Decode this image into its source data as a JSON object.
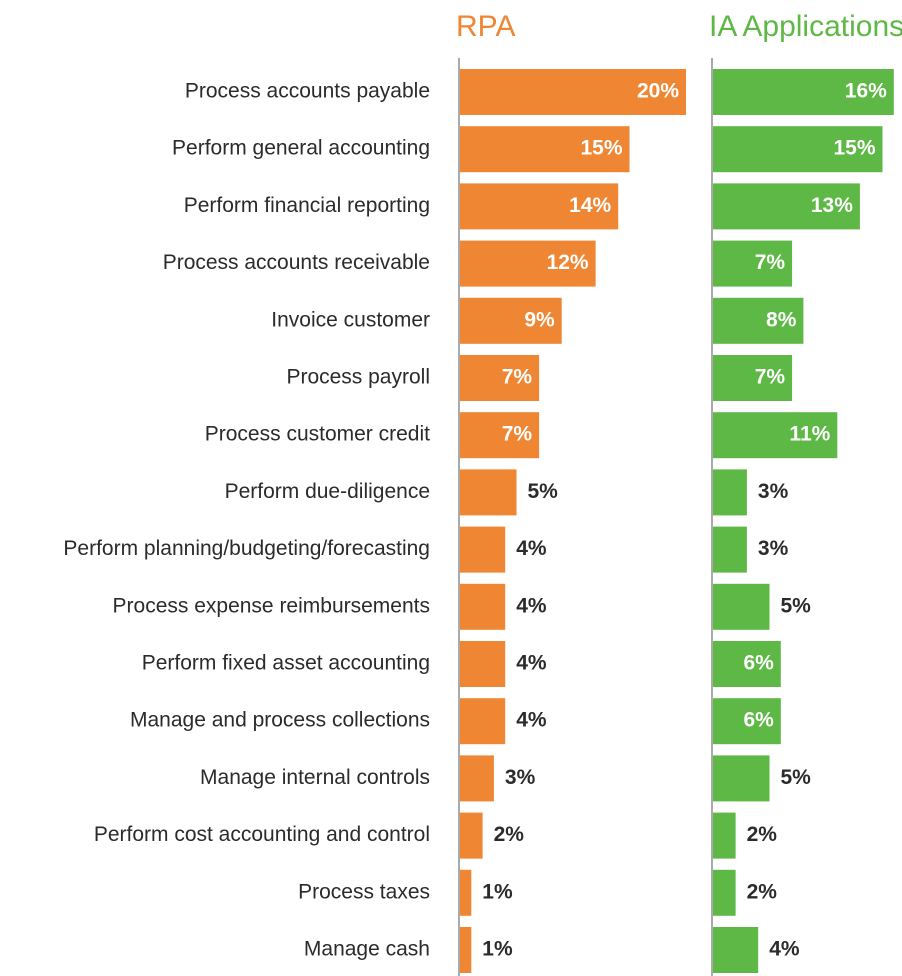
{
  "chart_data": {
    "type": "bar",
    "categories": [
      "Process accounts payable",
      "Perform general accounting",
      "Perform financial reporting",
      "Process accounts receivable",
      "Invoice customer",
      "Process payroll",
      "Process customer credit",
      "Perform due-diligence",
      "Perform planning/budgeting/forecasting",
      "Process expense reimbursements",
      "Perform fixed asset accounting",
      "Manage and process collections",
      "Manage internal controls",
      "Perform cost accounting and control",
      "Process taxes",
      "Manage cash"
    ],
    "series": [
      {
        "name": "RPA",
        "color": "#ef8633",
        "values": [
          20,
          15,
          14,
          12,
          9,
          7,
          7,
          5,
          4,
          4,
          4,
          4,
          3,
          2,
          1,
          1
        ],
        "value_labels": [
          "20%",
          "15%",
          "14%",
          "12%",
          "9%",
          "7%",
          "7%",
          "5%",
          "4%",
          "4%",
          "4%",
          "4%",
          "3%",
          "2%",
          "1%",
          "1%"
        ]
      },
      {
        "name": "IA Applications",
        "color": "#5db845",
        "values": [
          16,
          15,
          13,
          7,
          8,
          7,
          11,
          3,
          3,
          5,
          6,
          6,
          5,
          2,
          2,
          4
        ],
        "value_labels": [
          "16%",
          "15%",
          "13%",
          "7%",
          "8%",
          "7%",
          "11%",
          "3%",
          "3%",
          "5%",
          "6%",
          "6%",
          "5%",
          "2%",
          "2%",
          "4%"
        ]
      }
    ]
  }
}
